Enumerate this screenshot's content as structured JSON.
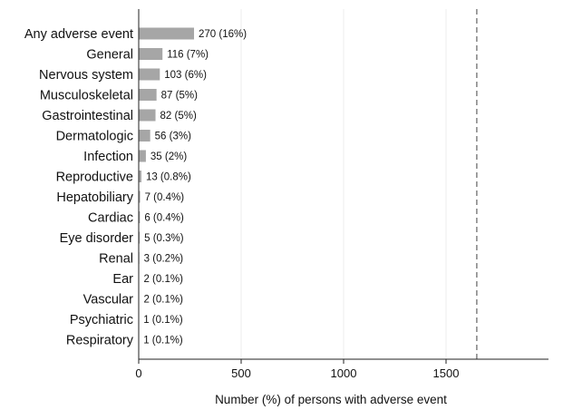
{
  "chart_data": {
    "type": "bar",
    "orientation": "horizontal",
    "xlabel": "Number (%) of persons with adverse event",
    "ylabel": "",
    "title": "",
    "xlim": [
      0,
      2000
    ],
    "xticks": [
      "0",
      "500",
      "1000",
      "1500"
    ],
    "xtick_values": [
      0,
      500,
      1000,
      1500
    ],
    "reference_line": 1650,
    "categories": [
      "Any adverse event",
      "General",
      "Nervous system",
      "Musculoskeletal",
      "Gastrointestinal",
      "Dermatologic",
      "Infection",
      "Reproductive",
      "Hepatobiliary",
      "Cardiac",
      "Eye disorder",
      "Renal",
      "Ear",
      "Vascular",
      "Psychiatric",
      "Respiratory"
    ],
    "values": [
      270,
      116,
      103,
      87,
      82,
      56,
      35,
      13,
      7,
      6,
      5,
      3,
      2,
      2,
      1,
      1
    ],
    "labels": [
      "270 (16%)",
      "116 (7%)",
      "103 (6%)",
      "87 (5%)",
      "82 (5%)",
      "56 (3%)",
      "35 (2%)",
      "13 (0.8%)",
      "7 (0.4%)",
      "6 (0.4%)",
      "5 (0.3%)",
      "3 (0.2%)",
      "2 (0.1%)",
      "2 (0.1%)",
      "1 (0.1%)",
      "1 (0.1%)"
    ],
    "grid": "vertical",
    "colors": {
      "bar": "#a6a6a6",
      "reference_line": "#777777",
      "grid": "#eeeeee",
      "axis": "#222222"
    }
  }
}
